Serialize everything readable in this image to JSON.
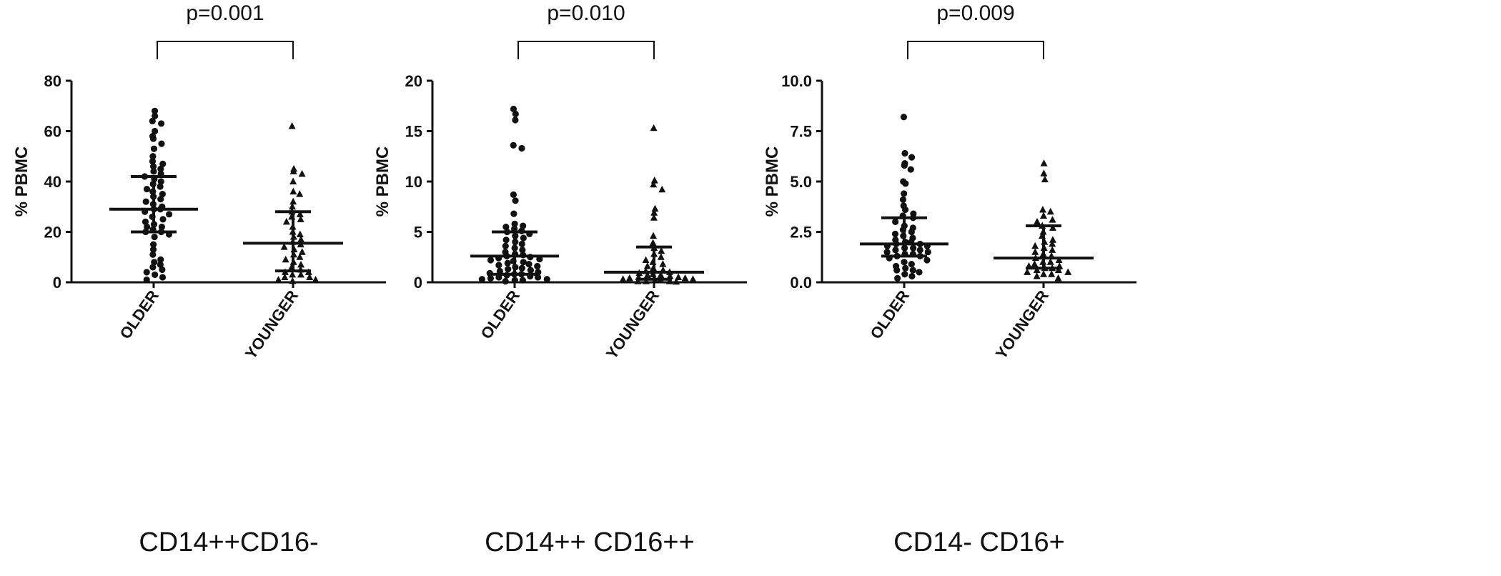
{
  "chart_data": [
    {
      "type": "scatter",
      "caption": "CD14++CD16-",
      "ylabel": "% PBMC",
      "ylim": [
        0,
        80
      ],
      "yticks": [
        "0",
        "20",
        "40",
        "60",
        "80"
      ],
      "ytick_values": [
        0,
        20,
        40,
        60,
        80
      ],
      "categories": [
        "OLDER",
        "YOUNGER"
      ],
      "comparison": "p=0.001",
      "series": [
        {
          "marker": "circle",
          "median": 29,
          "q1": 20,
          "q3": 42,
          "values": [
            68,
            66,
            64,
            63,
            60,
            58,
            57,
            55,
            53,
            50,
            48,
            47,
            46,
            45,
            44,
            43,
            42,
            41,
            40,
            39,
            38,
            37,
            36,
            35,
            34,
            33,
            32,
            31,
            30,
            29,
            29,
            28,
            27,
            26,
            25,
            24,
            23,
            22,
            22,
            21,
            20,
            20,
            19,
            18,
            15,
            13,
            11,
            9,
            8,
            7,
            6,
            5,
            4,
            3,
            2,
            1
          ]
        },
        {
          "marker": "triangle",
          "median": 15.5,
          "q1": 4.5,
          "q3": 28,
          "values": [
            62,
            45,
            44,
            43,
            40,
            36,
            35,
            32,
            30,
            28,
            27,
            26,
            25,
            24,
            22,
            20,
            19,
            18,
            17,
            16,
            15,
            14,
            13,
            12,
            11,
            10,
            9,
            8,
            7,
            6,
            5,
            4,
            4,
            3,
            3,
            2,
            2,
            1,
            1,
            0.5
          ]
        }
      ]
    },
    {
      "type": "scatter",
      "caption": "CD14++ CD16++",
      "ylabel": "% PBMC",
      "ylim": [
        0,
        20
      ],
      "yticks": [
        "0",
        "5",
        "10",
        "15",
        "20"
      ],
      "ytick_values": [
        0,
        5,
        10,
        15,
        20
      ],
      "categories": [
        "OLDER",
        "YOUNGER"
      ],
      "comparison": "p=0.010",
      "series": [
        {
          "marker": "circle",
          "median": 2.6,
          "q1": 0.8,
          "q3": 5,
          "values": [
            17.2,
            16.7,
            16.1,
            13.6,
            13.3,
            8.7,
            8.1,
            6.8,
            5.8,
            5.6,
            5.5,
            5.3,
            5.1,
            5.0,
            4.8,
            4.6,
            4.4,
            4.2,
            4.0,
            3.8,
            3.6,
            3.4,
            3.2,
            3.0,
            2.8,
            2.7,
            2.6,
            2.5,
            2.4,
            2.3,
            2.2,
            2.1,
            2.0,
            1.9,
            1.8,
            1.7,
            1.6,
            1.5,
            1.4,
            1.3,
            1.2,
            1.1,
            1.0,
            0.9,
            0.8,
            0.8,
            0.7,
            0.6,
            0.5,
            0.5,
            0.4,
            0.3,
            0.3,
            0.2,
            0.2,
            0.1
          ]
        },
        {
          "marker": "triangle",
          "median": 1.0,
          "q1": 0.3,
          "q3": 3.5,
          "values": [
            15.3,
            10.1,
            9.7,
            9.2,
            7.3,
            6.9,
            6.4,
            4.6,
            3.9,
            3.4,
            3.1,
            2.8,
            2.5,
            2.2,
            2.0,
            1.8,
            1.6,
            1.4,
            1.2,
            1.1,
            1.0,
            0.9,
            0.8,
            0.7,
            0.7,
            0.6,
            0.5,
            0.5,
            0.4,
            0.4,
            0.3,
            0.3,
            0.2,
            0.2,
            0.1,
            0.1,
            0.1,
            0.05
          ]
        }
      ]
    },
    {
      "type": "scatter",
      "caption": "CD14- CD16+",
      "ylabel": "% PBMC",
      "ylim": [
        0,
        10
      ],
      "yticks": [
        "0.0",
        "2.5",
        "5.0",
        "7.5",
        "10.0"
      ],
      "ytick_values": [
        0,
        2.5,
        5,
        7.5,
        10
      ],
      "categories": [
        "OLDER",
        "YOUNGER"
      ],
      "comparison": "p=0.009",
      "series": [
        {
          "marker": "circle",
          "median": 1.9,
          "q1": 1.3,
          "q3": 3.2,
          "values": [
            8.2,
            6.4,
            6.2,
            5.9,
            5.8,
            5.6,
            5.0,
            4.9,
            4.4,
            4.1,
            3.8,
            3.6,
            3.4,
            3.3,
            3.2,
            3.0,
            2.8,
            2.7,
            2.6,
            2.5,
            2.4,
            2.3,
            2.2,
            2.1,
            2.0,
            2.0,
            1.9,
            1.9,
            1.8,
            1.8,
            1.7,
            1.7,
            1.6,
            1.6,
            1.5,
            1.5,
            1.4,
            1.4,
            1.3,
            1.3,
            1.2,
            1.1,
            1.0,
            0.9,
            0.8,
            0.7,
            0.6,
            0.6,
            0.5,
            0.4,
            0.3,
            0.2
          ]
        },
        {
          "marker": "triangle",
          "median": 1.2,
          "q1": 0.7,
          "q3": 2.8,
          "values": [
            5.9,
            5.4,
            5.1,
            3.6,
            3.5,
            3.3,
            3.1,
            3.0,
            2.8,
            2.7,
            2.5,
            2.3,
            2.1,
            2.0,
            1.9,
            1.8,
            1.7,
            1.6,
            1.5,
            1.4,
            1.3,
            1.2,
            1.1,
            1.0,
            1.0,
            0.9,
            0.8,
            0.8,
            0.7,
            0.7,
            0.6,
            0.6,
            0.5,
            0.5,
            0.4,
            0.4,
            0.3,
            0.2
          ]
        }
      ]
    }
  ]
}
